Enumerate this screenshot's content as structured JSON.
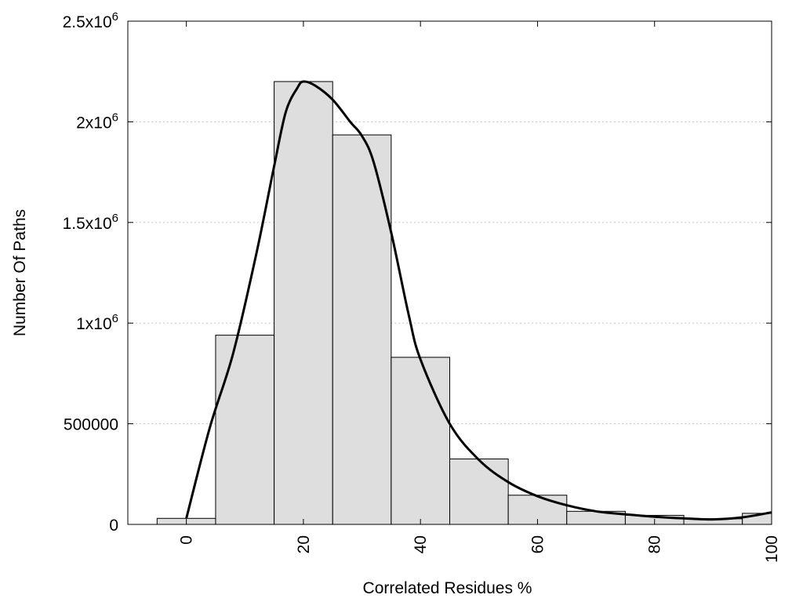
{
  "chart_data": {
    "type": "bar",
    "xlabel": "Correlated Residues %",
    "ylabel": "Number Of Paths",
    "xlim": [
      -10,
      100
    ],
    "ylim": [
      0,
      2500000
    ],
    "grid": true,
    "x_ticks": [
      0,
      20,
      40,
      60,
      80,
      100
    ],
    "y_ticks": [
      {
        "value": 0,
        "label": "0"
      },
      {
        "value": 500000,
        "label": "500000"
      },
      {
        "value": 1000000,
        "label": "1x10",
        "exp": "6"
      },
      {
        "value": 1500000,
        "label": "1.5x10",
        "exp": "6"
      },
      {
        "value": 2000000,
        "label": "2x10",
        "exp": "6"
      },
      {
        "value": 2500000,
        "label": "2.5x10",
        "exp": "6"
      }
    ],
    "bar_width": 10,
    "categories": [
      0,
      10,
      20,
      30,
      40,
      50,
      60,
      70,
      80,
      90,
      100
    ],
    "values": [
      30000,
      940000,
      2200000,
      1935000,
      830000,
      325000,
      145000,
      65000,
      45000,
      28000,
      55000
    ],
    "curve": {
      "x": [
        0,
        4,
        8,
        12,
        15,
        17,
        19,
        20,
        22,
        25,
        28,
        30,
        32,
        35,
        38,
        40,
        45,
        50,
        55,
        60,
        65,
        70,
        75,
        80,
        85,
        90,
        95,
        100
      ],
      "y": [
        30000,
        480000,
        850000,
        1350000,
        1780000,
        2050000,
        2170000,
        2200000,
        2180000,
        2110000,
        2000000,
        1930000,
        1800000,
        1450000,
        1040000,
        820000,
        500000,
        320000,
        210000,
        140000,
        95000,
        65000,
        50000,
        38000,
        30000,
        25000,
        35000,
        60000
      ]
    },
    "colors": {
      "bar_fill": "#dedede",
      "bar_stroke": "#000000",
      "curve": "#000000",
      "grid": "#c8c8c8"
    }
  }
}
